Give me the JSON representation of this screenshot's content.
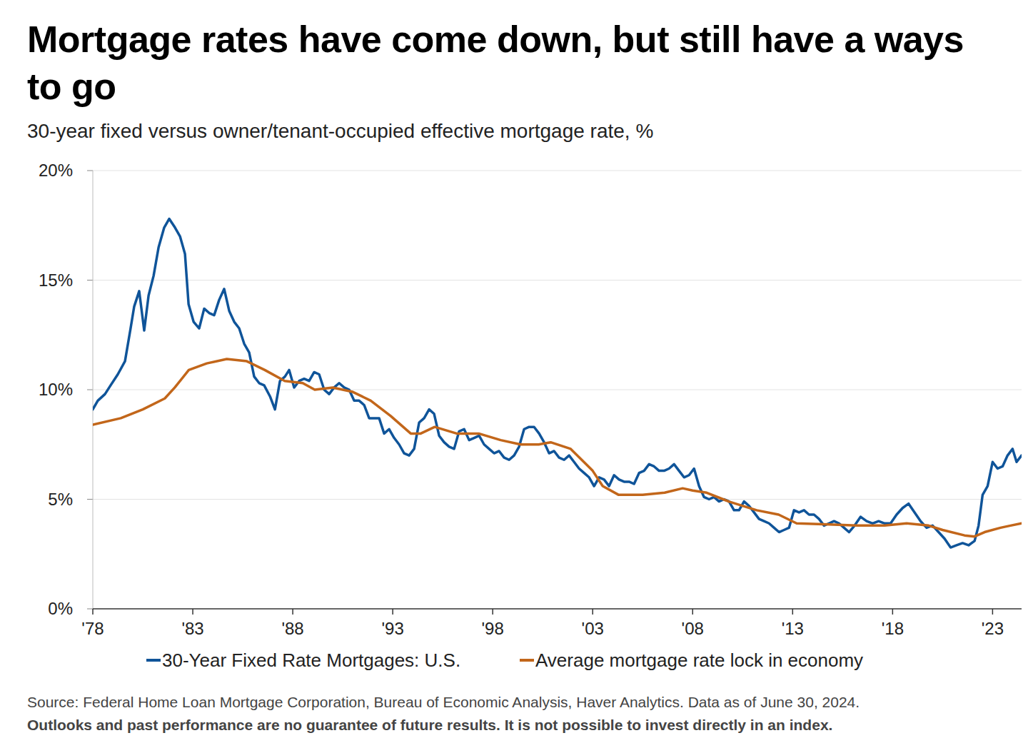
{
  "chart_data": {
    "type": "line",
    "title": "Mortgage rates have come down, but still have a ways to go",
    "subtitle": "30-year fixed versus owner/tenant-occupied effective mortgage rate, %",
    "footnotes": [
      "Source: Federal Home Loan Mortgage Corporation, Bureau of Economic Analysis, Haver Analytics. Data as of June 30, 2024.",
      "Outlooks and past performance are no guarantee of future results. It is not possible to invest directly in an index."
    ],
    "xlim": [
      1978,
      2024.45
    ],
    "xticks": [
      {
        "value": 1978,
        "label": "'78"
      },
      {
        "value": 1983,
        "label": "'83"
      },
      {
        "value": 1988,
        "label": "'88"
      },
      {
        "value": 1993,
        "label": "'93"
      },
      {
        "value": 1998,
        "label": "'98"
      },
      {
        "value": 2003,
        "label": "'03"
      },
      {
        "value": 2008,
        "label": "'08"
      },
      {
        "value": 2013,
        "label": "'13"
      },
      {
        "value": 2018,
        "label": "'18"
      },
      {
        "value": 2023,
        "label": "'23"
      }
    ],
    "ylim": [
      0,
      20
    ],
    "yticks": [
      {
        "value": 0,
        "label": "0%"
      },
      {
        "value": 5,
        "label": "5%"
      },
      {
        "value": 10,
        "label": "10%"
      },
      {
        "value": 15,
        "label": "15%"
      },
      {
        "value": 20,
        "label": "20%"
      }
    ],
    "grid": true,
    "legend": "bottom",
    "series": [
      {
        "name": "30-Year Fixed Rate Mortgages: U.S.",
        "color": "#0f5499",
        "x": [
          1978.0,
          1978.25,
          1978.61,
          1978.89,
          1979.25,
          1979.61,
          1979.89,
          1980.07,
          1980.32,
          1980.57,
          1980.79,
          1981.04,
          1981.29,
          1981.57,
          1981.82,
          1982.11,
          1982.36,
          1982.61,
          1982.79,
          1983.04,
          1983.32,
          1983.57,
          1983.82,
          1984.07,
          1984.32,
          1984.57,
          1984.82,
          1985.07,
          1985.32,
          1985.57,
          1985.82,
          1986.07,
          1986.32,
          1986.57,
          1986.86,
          1987.11,
          1987.36,
          1987.61,
          1987.82,
          1988.07,
          1988.32,
          1988.57,
          1988.82,
          1989.07,
          1989.32,
          1989.57,
          1989.82,
          1990.07,
          1990.32,
          1990.57,
          1990.82,
          1991.07,
          1991.32,
          1991.57,
          1991.82,
          1992.07,
          1992.32,
          1992.57,
          1992.82,
          1993.07,
          1993.32,
          1993.57,
          1993.82,
          1994.07,
          1994.32,
          1994.57,
          1994.82,
          1995.07,
          1995.32,
          1995.57,
          1995.82,
          1996.07,
          1996.32,
          1996.57,
          1996.82,
          1997.07,
          1997.32,
          1997.57,
          1997.82,
          1998.07,
          1998.32,
          1998.57,
          1998.82,
          1999.07,
          1999.32,
          1999.57,
          1999.82,
          2000.07,
          2000.32,
          2000.57,
          2000.82,
          2001.07,
          2001.32,
          2001.57,
          2001.82,
          2002.07,
          2002.32,
          2002.57,
          2002.82,
          2003.07,
          2003.32,
          2003.57,
          2003.82,
          2004.07,
          2004.32,
          2004.57,
          2004.82,
          2005.07,
          2005.32,
          2005.57,
          2005.82,
          2006.07,
          2006.32,
          2006.57,
          2006.82,
          2007.07,
          2007.32,
          2007.57,
          2007.82,
          2008.07,
          2008.32,
          2008.57,
          2008.82,
          2009.07,
          2009.32,
          2009.57,
          2009.82,
          2010.07,
          2010.32,
          2010.57,
          2010.82,
          2011.07,
          2011.32,
          2011.57,
          2011.82,
          2012.07,
          2012.32,
          2012.57,
          2012.82,
          2013.07,
          2013.32,
          2013.57,
          2013.82,
          2014.07,
          2014.32,
          2014.57,
          2014.82,
          2015.07,
          2015.32,
          2015.57,
          2015.82,
          2016.1,
          2016.4,
          2016.7,
          2017.0,
          2017.3,
          2017.6,
          2017.9,
          2018.2,
          2018.5,
          2018.8,
          2019.1,
          2019.4,
          2019.7,
          2020.0,
          2020.3,
          2020.6,
          2020.9,
          2021.2,
          2021.5,
          2021.8,
          2022.1,
          2022.3,
          2022.5,
          2022.75,
          2023.0,
          2023.25,
          2023.5,
          2023.75,
          2024.0,
          2024.2,
          2024.45
        ],
        "values": [
          9.1,
          9.5,
          9.8,
          10.2,
          10.7,
          11.3,
          12.8,
          13.8,
          14.5,
          12.7,
          14.3,
          15.2,
          16.5,
          17.4,
          17.8,
          17.4,
          17.0,
          16.2,
          13.9,
          13.1,
          12.8,
          13.7,
          13.5,
          13.4,
          14.1,
          14.6,
          13.6,
          13.1,
          12.8,
          12.1,
          11.7,
          10.6,
          10.3,
          10.2,
          9.7,
          9.1,
          10.4,
          10.6,
          10.9,
          10.1,
          10.4,
          10.5,
          10.4,
          10.8,
          10.7,
          10.0,
          9.8,
          10.1,
          10.3,
          10.1,
          10.0,
          9.5,
          9.5,
          9.3,
          8.7,
          8.7,
          8.7,
          8.0,
          8.2,
          7.8,
          7.5,
          7.1,
          7.0,
          7.3,
          8.5,
          8.7,
          9.1,
          8.9,
          7.9,
          7.6,
          7.4,
          7.3,
          8.1,
          8.2,
          7.7,
          7.8,
          7.9,
          7.5,
          7.3,
          7.1,
          7.2,
          6.9,
          6.8,
          7.0,
          7.4,
          8.2,
          8.3,
          8.3,
          8.0,
          7.6,
          7.1,
          7.2,
          6.9,
          6.8,
          7.0,
          6.7,
          6.4,
          6.2,
          6.0,
          5.6,
          6.0,
          5.9,
          5.6,
          6.1,
          5.9,
          5.8,
          5.8,
          5.7,
          6.2,
          6.3,
          6.6,
          6.5,
          6.3,
          6.3,
          6.4,
          6.6,
          6.3,
          6.0,
          6.1,
          6.4,
          5.6,
          5.1,
          5.0,
          5.1,
          4.9,
          5.0,
          4.9,
          4.5,
          4.5,
          4.9,
          4.7,
          4.4,
          4.1,
          4.0,
          3.9,
          3.7,
          3.5,
          3.6,
          3.7,
          4.5,
          4.4,
          4.5,
          4.3,
          4.3,
          4.1,
          3.8,
          3.9,
          4.0,
          3.9,
          3.7,
          3.5,
          3.8,
          4.2,
          4.0,
          3.9,
          4.0,
          3.9,
          3.9,
          4.3,
          4.6,
          4.8,
          4.4,
          4.0,
          3.7,
          3.8,
          3.5,
          3.2,
          2.8,
          2.9,
          3.0,
          2.9,
          3.1,
          3.8,
          5.2,
          5.6,
          6.7,
          6.4,
          6.5,
          7.0,
          7.3,
          6.7,
          7.0
        ]
      },
      {
        "name": "Average mortgage rate lock in economy",
        "color": "#c2661a",
        "x": [
          1978.0,
          1979.4,
          1980.5,
          1981.6,
          1982.1,
          1982.8,
          1983.7,
          1984.7,
          1985.7,
          1986.6,
          1987.6,
          1988.5,
          1989.1,
          1990.0,
          1991.0,
          1991.9,
          1992.9,
          1993.9,
          1994.4,
          1995.1,
          1996.2,
          1997.3,
          1998.4,
          1999.4,
          2000.3,
          2000.9,
          2001.9,
          2003.0,
          2003.5,
          2004.3,
          2005.5,
          2006.6,
          2007.5,
          2008.0,
          2008.7,
          2009.8,
          2011.2,
          2012.3,
          2013.2,
          2014.8,
          2016.2,
          2017.6,
          2018.7,
          2019.8,
          2020.5,
          2021.6,
          2022.1,
          2022.6,
          2023.4,
          2023.9,
          2024.45
        ],
        "values": [
          8.4,
          8.7,
          9.1,
          9.6,
          10.1,
          10.9,
          11.2,
          11.4,
          11.3,
          10.9,
          10.4,
          10.3,
          10.0,
          10.1,
          9.9,
          9.5,
          8.8,
          8.0,
          8.0,
          8.3,
          8.0,
          8.0,
          7.7,
          7.5,
          7.5,
          7.6,
          7.3,
          6.3,
          5.6,
          5.2,
          5.2,
          5.3,
          5.5,
          5.4,
          5.3,
          4.9,
          4.5,
          4.3,
          3.9,
          3.85,
          3.8,
          3.8,
          3.9,
          3.8,
          3.6,
          3.35,
          3.3,
          3.5,
          3.7,
          3.8,
          3.9
        ]
      }
    ]
  }
}
